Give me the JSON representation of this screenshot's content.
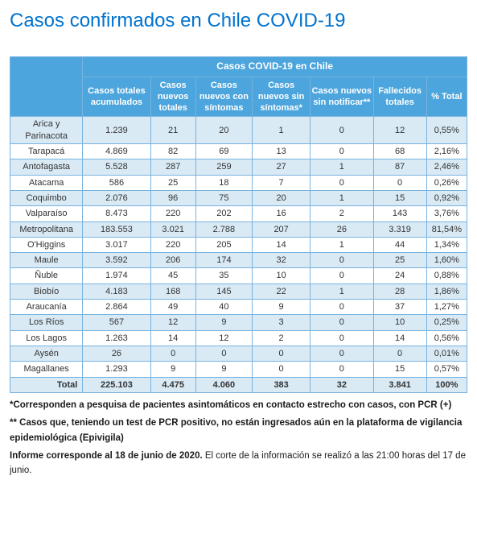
{
  "page_title": "Casos confirmados en Chile COVID-19",
  "table": {
    "group_header": "Casos COVID-19 en Chile",
    "columns": {
      "region": "",
      "casos_totales": "Casos totales acumulados",
      "casos_nuevos": "Casos nuevos totales",
      "casos_sintomas": "Casos nuevos con síntomas",
      "casos_sin_sintomas": "Casos nuevos sin síntomas*",
      "casos_sin_notificar": "Casos nuevos sin notificar**",
      "fallecidos": "Fallecidos totales",
      "pct_total": "% Total"
    },
    "rows": [
      {
        "region": "Arica y Parinacota",
        "ct": "1.239",
        "cn": "21",
        "cs": "20",
        "css": "1",
        "csn": "0",
        "ft": "12",
        "pt": "0,55%"
      },
      {
        "region": "Tarapacá",
        "ct": "4.869",
        "cn": "82",
        "cs": "69",
        "css": "13",
        "csn": "0",
        "ft": "68",
        "pt": "2,16%"
      },
      {
        "region": "Antofagasta",
        "ct": "5.528",
        "cn": "287",
        "cs": "259",
        "css": "27",
        "csn": "1",
        "ft": "87",
        "pt": "2,46%"
      },
      {
        "region": "Atacama",
        "ct": "586",
        "cn": "25",
        "cs": "18",
        "css": "7",
        "csn": "0",
        "ft": "0",
        "pt": "0,26%"
      },
      {
        "region": "Coquimbo",
        "ct": "2.076",
        "cn": "96",
        "cs": "75",
        "css": "20",
        "csn": "1",
        "ft": "15",
        "pt": "0,92%"
      },
      {
        "region": "Valparaíso",
        "ct": "8.473",
        "cn": "220",
        "cs": "202",
        "css": "16",
        "csn": "2",
        "ft": "143",
        "pt": "3,76%"
      },
      {
        "region": "Metropolitana",
        "ct": "183.553",
        "cn": "3.021",
        "cs": "2.788",
        "css": "207",
        "csn": "26",
        "ft": "3.319",
        "pt": "81,54%"
      },
      {
        "region": "O'Higgins",
        "ct": "3.017",
        "cn": "220",
        "cs": "205",
        "css": "14",
        "csn": "1",
        "ft": "44",
        "pt": "1,34%"
      },
      {
        "region": "Maule",
        "ct": "3.592",
        "cn": "206",
        "cs": "174",
        "css": "32",
        "csn": "0",
        "ft": "25",
        "pt": "1,60%"
      },
      {
        "region": "Ñuble",
        "ct": "1.974",
        "cn": "45",
        "cs": "35",
        "css": "10",
        "csn": "0",
        "ft": "24",
        "pt": "0,88%"
      },
      {
        "region": "Biobío",
        "ct": "4.183",
        "cn": "168",
        "cs": "145",
        "css": "22",
        "csn": "1",
        "ft": "28",
        "pt": "1,86%"
      },
      {
        "region": "Araucanía",
        "ct": "2.864",
        "cn": "49",
        "cs": "40",
        "css": "9",
        "csn": "0",
        "ft": "37",
        "pt": "1,27%"
      },
      {
        "region": "Los Ríos",
        "ct": "567",
        "cn": "12",
        "cs": "9",
        "css": "3",
        "csn": "0",
        "ft": "10",
        "pt": "0,25%"
      },
      {
        "region": "Los Lagos",
        "ct": "1.263",
        "cn": "14",
        "cs": "12",
        "css": "2",
        "csn": "0",
        "ft": "14",
        "pt": "0,56%"
      },
      {
        "region": "Aysén",
        "ct": "26",
        "cn": "0",
        "cs": "0",
        "css": "0",
        "csn": "0",
        "ft": "0",
        "pt": "0,01%"
      },
      {
        "region": "Magallanes",
        "ct": "1.293",
        "cn": "9",
        "cs": "9",
        "css": "0",
        "csn": "0",
        "ft": "15",
        "pt": "0,57%"
      }
    ],
    "total": {
      "region": "Total",
      "ct": "225.103",
      "cn": "4.475",
      "cs": "4.060",
      "css": "383",
      "csn": "32",
      "ft": "3.841",
      "pt": "100%"
    }
  },
  "notes": {
    "n1": "*Corresponden a pesquisa de pacientes asintomáticos en contacto estrecho con casos, con PCR (+)",
    "n2": "** Casos que, teniendo un test de PCR positivo, no están ingresados aún en la plataforma de vigilancia epidemiológica (Epivigila)",
    "n3a": "Informe corresponde al 18 de junio de 2020.",
    "n3b": " El corte de la información se realizó a las 21:00 horas del 17 de junio."
  },
  "colors": {
    "title": "#0073cf",
    "th_bg": "#4ca5dc",
    "th_fg": "#ffffff",
    "row_alt_bg": "#d9eaf5",
    "border": "#77b3e0"
  }
}
